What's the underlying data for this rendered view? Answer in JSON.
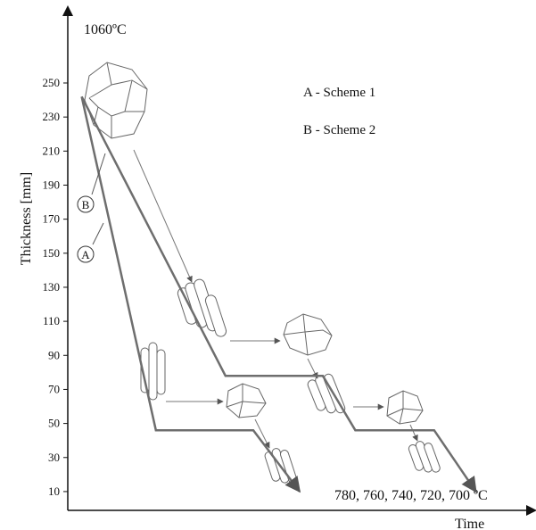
{
  "chart_data": {
    "type": "line",
    "title": "",
    "xlabel": "Time",
    "ylabel": "Thickness [mm]",
    "y_ticks": [
      10,
      30,
      50,
      70,
      90,
      110,
      130,
      150,
      170,
      190,
      210,
      230,
      250
    ],
    "ylim": [
      0,
      270
    ],
    "start_temperature_label": "1060ºC",
    "end_temperature_label": "780, 760, 740, 720, 700 ºC",
    "legend": [
      {
        "marker": "A",
        "text": "A - Scheme 1"
      },
      {
        "marker": "B",
        "text": "B - Scheme 2"
      }
    ],
    "series": [
      {
        "marker": "A",
        "points": [
          {
            "t": 0.03,
            "thickness": 242
          },
          {
            "t": 0.19,
            "thickness": 46
          },
          {
            "t": 0.4,
            "thickness": 46
          },
          {
            "t": 0.5,
            "thickness": 10
          }
        ]
      },
      {
        "marker": "B",
        "points": [
          {
            "t": 0.03,
            "thickness": 242
          },
          {
            "t": 0.34,
            "thickness": 78
          },
          {
            "t": 0.55,
            "thickness": 78
          },
          {
            "t": 0.62,
            "thickness": 46
          },
          {
            "t": 0.79,
            "thickness": 46
          },
          {
            "t": 0.88,
            "thickness": 10
          }
        ]
      }
    ]
  }
}
